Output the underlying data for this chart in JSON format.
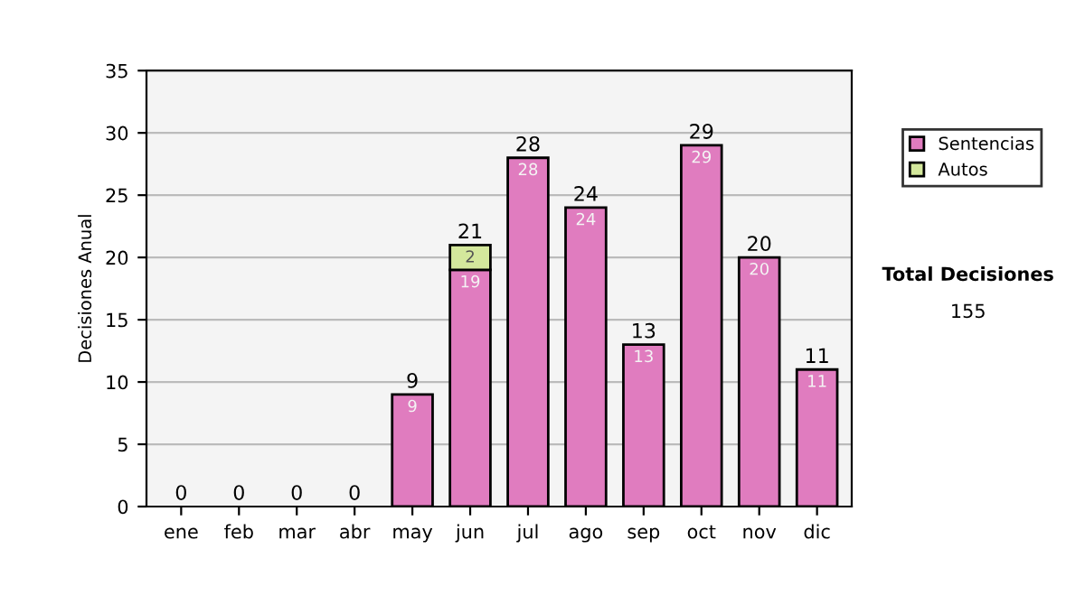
{
  "chart_data": {
    "type": "bar",
    "stacked": true,
    "ylabel": "Decisiones Anual",
    "categories": [
      "ene",
      "feb",
      "mar",
      "abr",
      "may",
      "jun",
      "jul",
      "ago",
      "sep",
      "oct",
      "nov",
      "dic"
    ],
    "series": [
      {
        "name": "Sentencias",
        "color": "#e07cbf",
        "values": [
          0,
          0,
          0,
          0,
          9,
          19,
          28,
          24,
          13,
          29,
          20,
          11
        ],
        "value_labels": [
          null,
          null,
          null,
          null,
          "9",
          "19",
          "28",
          "24",
          "13",
          "29",
          "20",
          "11"
        ]
      },
      {
        "name": "Autos",
        "color": "#d4e89c",
        "values": [
          0,
          0,
          0,
          0,
          0,
          2,
          0,
          0,
          0,
          0,
          0,
          0
        ],
        "value_labels": [
          null,
          null,
          null,
          null,
          null,
          "2",
          null,
          null,
          null,
          null,
          null,
          null
        ]
      }
    ],
    "totals": [
      "0",
      "0",
      "0",
      "0",
      "9",
      "21",
      "28",
      "24",
      "13",
      "29",
      "20",
      "11"
    ],
    "ylim": [
      0,
      35
    ],
    "yticks": [
      0,
      5,
      10,
      15,
      20,
      25,
      30,
      35
    ],
    "grid": "y",
    "legend": "right",
    "annotations": [
      "Total Decisiones",
      "155"
    ]
  }
}
